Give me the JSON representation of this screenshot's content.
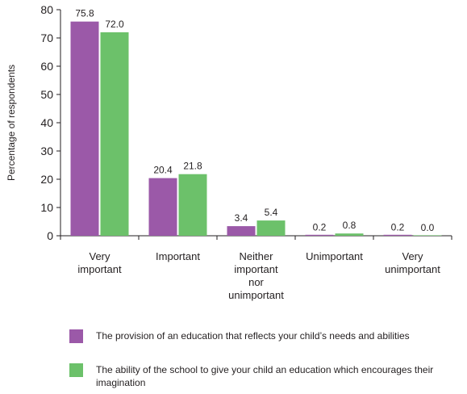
{
  "chart_data": {
    "type": "bar",
    "ylabel": "Percentage of respondents",
    "xlabel": "",
    "ylim": [
      0,
      80
    ],
    "yticks": [
      0,
      10,
      20,
      30,
      40,
      50,
      60,
      70,
      80
    ],
    "categories": [
      [
        "Very",
        "important"
      ],
      [
        "Important"
      ],
      [
        "Neither",
        "important",
        "nor",
        "unimportant"
      ],
      [
        "Unimportant"
      ],
      [
        "Very",
        "unimportant"
      ]
    ],
    "series": [
      {
        "name": "The provision of an education that reflects your child’s needs and abilities",
        "color": "#9b59a8",
        "values": [
          75.8,
          20.4,
          3.4,
          0.2,
          0.2
        ],
        "labels": [
          "75.8",
          "20.4",
          "3.4",
          "0.2",
          "0.2"
        ]
      },
      {
        "name": "The ability of the school to give your child an education which encourages their imagination",
        "color": "#6cc16a",
        "values": [
          72.0,
          21.8,
          5.4,
          0.8,
          0.0
        ],
        "labels": [
          "72.0",
          "21.8",
          "5.4",
          "0.8",
          "0.0"
        ]
      }
    ],
    "grid": false,
    "legend_position": "bottom"
  }
}
